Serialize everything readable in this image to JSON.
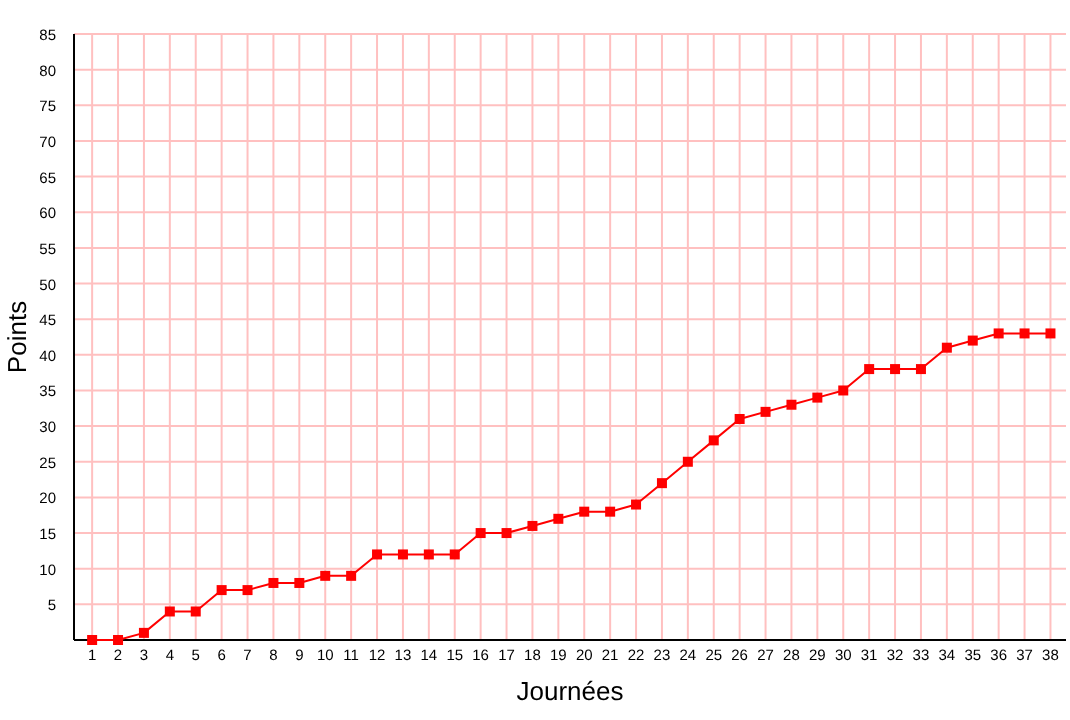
{
  "chart_data": {
    "type": "line",
    "xlabel": "Journées",
    "ylabel": "Points",
    "x": [
      1,
      2,
      3,
      4,
      5,
      6,
      7,
      8,
      9,
      10,
      11,
      12,
      13,
      14,
      15,
      16,
      17,
      18,
      19,
      20,
      21,
      22,
      23,
      24,
      25,
      26,
      27,
      28,
      29,
      30,
      31,
      32,
      33,
      34,
      35,
      36,
      37,
      38
    ],
    "series": [
      {
        "color": "#ff0000",
        "values": [
          0,
          0,
          1,
          4,
          4,
          7,
          7,
          8,
          8,
          9,
          9,
          12,
          12,
          12,
          12,
          15,
          15,
          16,
          17,
          18,
          18,
          19,
          22,
          25,
          28,
          31,
          32,
          33,
          34,
          35,
          38,
          38,
          38,
          41,
          42,
          43,
          43,
          43
        ]
      }
    ],
    "xlim": [
      0.3,
      38.6
    ],
    "xticks": [
      1,
      2,
      3,
      4,
      5,
      6,
      7,
      8,
      9,
      10,
      11,
      12,
      13,
      14,
      15,
      16,
      17,
      18,
      19,
      20,
      21,
      22,
      23,
      24,
      25,
      26,
      27,
      28,
      29,
      30,
      31,
      32,
      33,
      34,
      35,
      36,
      37,
      38
    ],
    "ylim": [
      0,
      85
    ],
    "yticks": [
      {
        "value": 0,
        "label": null
      },
      5,
      10,
      15,
      20,
      25,
      30,
      35,
      40,
      45,
      50,
      55,
      60,
      65,
      70,
      75,
      80,
      85
    ],
    "grid": true,
    "marker": "square",
    "line_style": "solid"
  }
}
